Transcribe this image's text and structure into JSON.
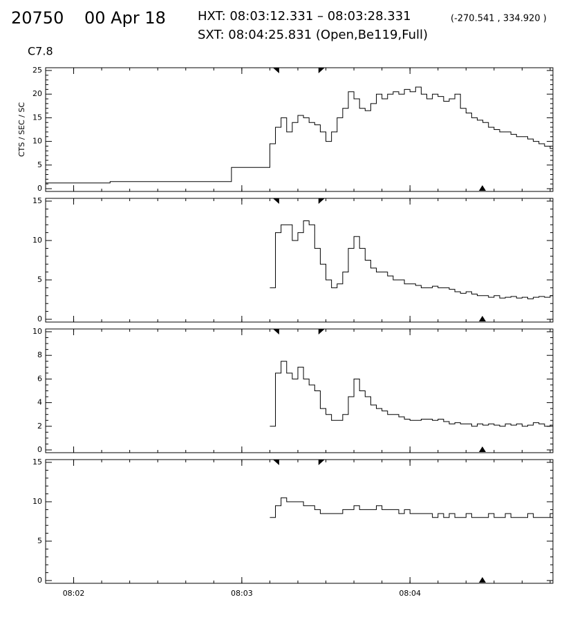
{
  "header": {
    "id": "20750",
    "date": "00 Apr 18",
    "hxt": "HXT: 08:03:12.331 – 08:03:28.331",
    "coords": "(-270.541 , 334.920 )",
    "sxt": "SXT: 08:04:25.831 (Open,Be119,Full)",
    "class": "C7.8",
    "hxt_window": [
      192.331,
      208.331
    ],
    "sxt_time": 265.831
  },
  "chart_data": [
    {
      "type": "step",
      "ylabel": "CTS / SEC / SC",
      "color": "#000000",
      "xlim": [
        110,
        291
      ],
      "xticks": [
        {
          "value": 120,
          "label": "08:02"
        },
        {
          "value": 180,
          "label": "08:03"
        },
        {
          "value": 240,
          "label": "08:04"
        }
      ],
      "xminor": 6,
      "ylim": [
        0,
        25
      ],
      "yticks": [
        0,
        5,
        10,
        15,
        20,
        25
      ],
      "yminor": 5,
      "x": [
        110,
        133,
        176.3,
        190,
        192,
        194,
        196,
        198,
        200,
        202,
        204,
        206,
        208,
        210,
        212,
        214,
        216,
        218,
        220,
        222,
        224,
        226,
        228,
        230,
        232,
        234,
        236,
        238,
        240,
        242,
        244,
        246,
        248,
        250,
        252,
        254,
        256,
        258,
        260,
        262,
        264,
        266,
        268,
        270,
        272,
        274,
        276,
        278,
        280,
        282,
        284,
        286,
        288,
        290
      ],
      "values": [
        1.2,
        1.5,
        4.5,
        9.5,
        13,
        15,
        12,
        14,
        15.5,
        15,
        14,
        13.5,
        12,
        10,
        12,
        15,
        17,
        20.5,
        19,
        17,
        16.5,
        18,
        20,
        19,
        20,
        20.5,
        20,
        21,
        20.5,
        21.5,
        20,
        19,
        20,
        19.5,
        18.5,
        19,
        20,
        17,
        16,
        15,
        14.5,
        14,
        13,
        12.5,
        12,
        12,
        11.5,
        11,
        11,
        10.5,
        10,
        9.5,
        9,
        8.5
      ]
    },
    {
      "type": "step",
      "color": "#000000",
      "xlim": [
        110,
        291
      ],
      "xticks": [
        {
          "value": 120,
          "label": "08:02"
        },
        {
          "value": 180,
          "label": "08:03"
        },
        {
          "value": 240,
          "label": "08:04"
        }
      ],
      "xminor": 6,
      "ylim": [
        0,
        15
      ],
      "yticks": [
        0,
        5,
        10,
        15
      ],
      "yminor": 5,
      "x": [
        190,
        192,
        194,
        196,
        198,
        200,
        202,
        204,
        206,
        208,
        210,
        212,
        214,
        216,
        218,
        220,
        222,
        224,
        226,
        228,
        230,
        232,
        234,
        236,
        238,
        240,
        242,
        244,
        246,
        248,
        250,
        252,
        254,
        256,
        258,
        260,
        262,
        264,
        266,
        268,
        270,
        272,
        274,
        276,
        278,
        280,
        282,
        284,
        286,
        288,
        290
      ],
      "values": [
        4,
        11,
        12,
        12,
        10,
        11,
        12.5,
        12,
        9,
        7,
        5,
        4,
        4.5,
        6,
        9,
        10.5,
        9,
        7.5,
        6.5,
        6,
        6,
        5.5,
        5,
        5,
        4.5,
        4.5,
        4.3,
        4,
        4,
        4.2,
        4,
        4,
        3.8,
        3.5,
        3.3,
        3.5,
        3.2,
        3,
        3,
        2.8,
        3,
        2.7,
        2.8,
        2.9,
        2.7,
        2.8,
        2.6,
        2.8,
        2.9,
        2.8,
        3
      ]
    },
    {
      "type": "step",
      "color": "#000000",
      "xlim": [
        110,
        291
      ],
      "xticks": [
        {
          "value": 120,
          "label": "08:02"
        },
        {
          "value": 180,
          "label": "08:03"
        },
        {
          "value": 240,
          "label": "08:04"
        }
      ],
      "xminor": 6,
      "ylim": [
        0,
        10
      ],
      "yticks": [
        0,
        2,
        4,
        6,
        8,
        10
      ],
      "yminor": 4,
      "x": [
        190,
        192,
        194,
        196,
        198,
        200,
        202,
        204,
        206,
        208,
        210,
        212,
        214,
        216,
        218,
        220,
        222,
        224,
        226,
        228,
        230,
        232,
        234,
        236,
        238,
        240,
        242,
        244,
        246,
        248,
        250,
        252,
        254,
        256,
        258,
        260,
        262,
        264,
        266,
        268,
        270,
        272,
        274,
        276,
        278,
        280,
        282,
        284,
        286,
        288,
        290
      ],
      "values": [
        2,
        6.5,
        7.5,
        6.5,
        6,
        7,
        6,
        5.5,
        5,
        3.5,
        3,
        2.5,
        2.5,
        3,
        4.5,
        6,
        5,
        4.5,
        3.8,
        3.5,
        3.3,
        3,
        3,
        2.8,
        2.6,
        2.5,
        2.5,
        2.6,
        2.6,
        2.5,
        2.6,
        2.4,
        2.2,
        2.3,
        2.2,
        2.2,
        2,
        2.2,
        2.1,
        2.2,
        2.1,
        2,
        2.2,
        2.1,
        2.2,
        2,
        2.1,
        2.3,
        2.2,
        2,
        2.1
      ]
    },
    {
      "type": "step",
      "color": "#000000",
      "xlim": [
        110,
        291
      ],
      "xticks": [
        {
          "value": 120,
          "label": "08:02"
        },
        {
          "value": 180,
          "label": "08:03"
        },
        {
          "value": 240,
          "label": "08:04"
        }
      ],
      "xminor": 6,
      "ylim": [
        0,
        15
      ],
      "yticks": [
        0,
        5,
        10,
        15
      ],
      "yminor": 5,
      "x": [
        190,
        192,
        194,
        196,
        198,
        200,
        202,
        204,
        206,
        208,
        210,
        212,
        214,
        216,
        218,
        220,
        222,
        224,
        226,
        228,
        230,
        232,
        234,
        236,
        238,
        240,
        242,
        244,
        246,
        248,
        250,
        252,
        254,
        256,
        258,
        260,
        262,
        264,
        266,
        268,
        270,
        272,
        274,
        276,
        278,
        280,
        282,
        284,
        286,
        288,
        290
      ],
      "values": [
        8,
        9.5,
        10.5,
        10,
        10,
        10,
        9.5,
        9.5,
        9,
        8.5,
        8.5,
        8.5,
        8.5,
        9,
        9,
        9.5,
        9,
        9,
        9,
        9.5,
        9,
        9,
        9,
        8.5,
        9,
        8.5,
        8.5,
        8.5,
        8.5,
        8,
        8.5,
        8,
        8.5,
        8,
        8,
        8.5,
        8,
        8,
        8,
        8.5,
        8,
        8,
        8.5,
        8,
        8,
        8,
        8.5,
        8,
        8,
        8,
        8.5
      ]
    }
  ]
}
